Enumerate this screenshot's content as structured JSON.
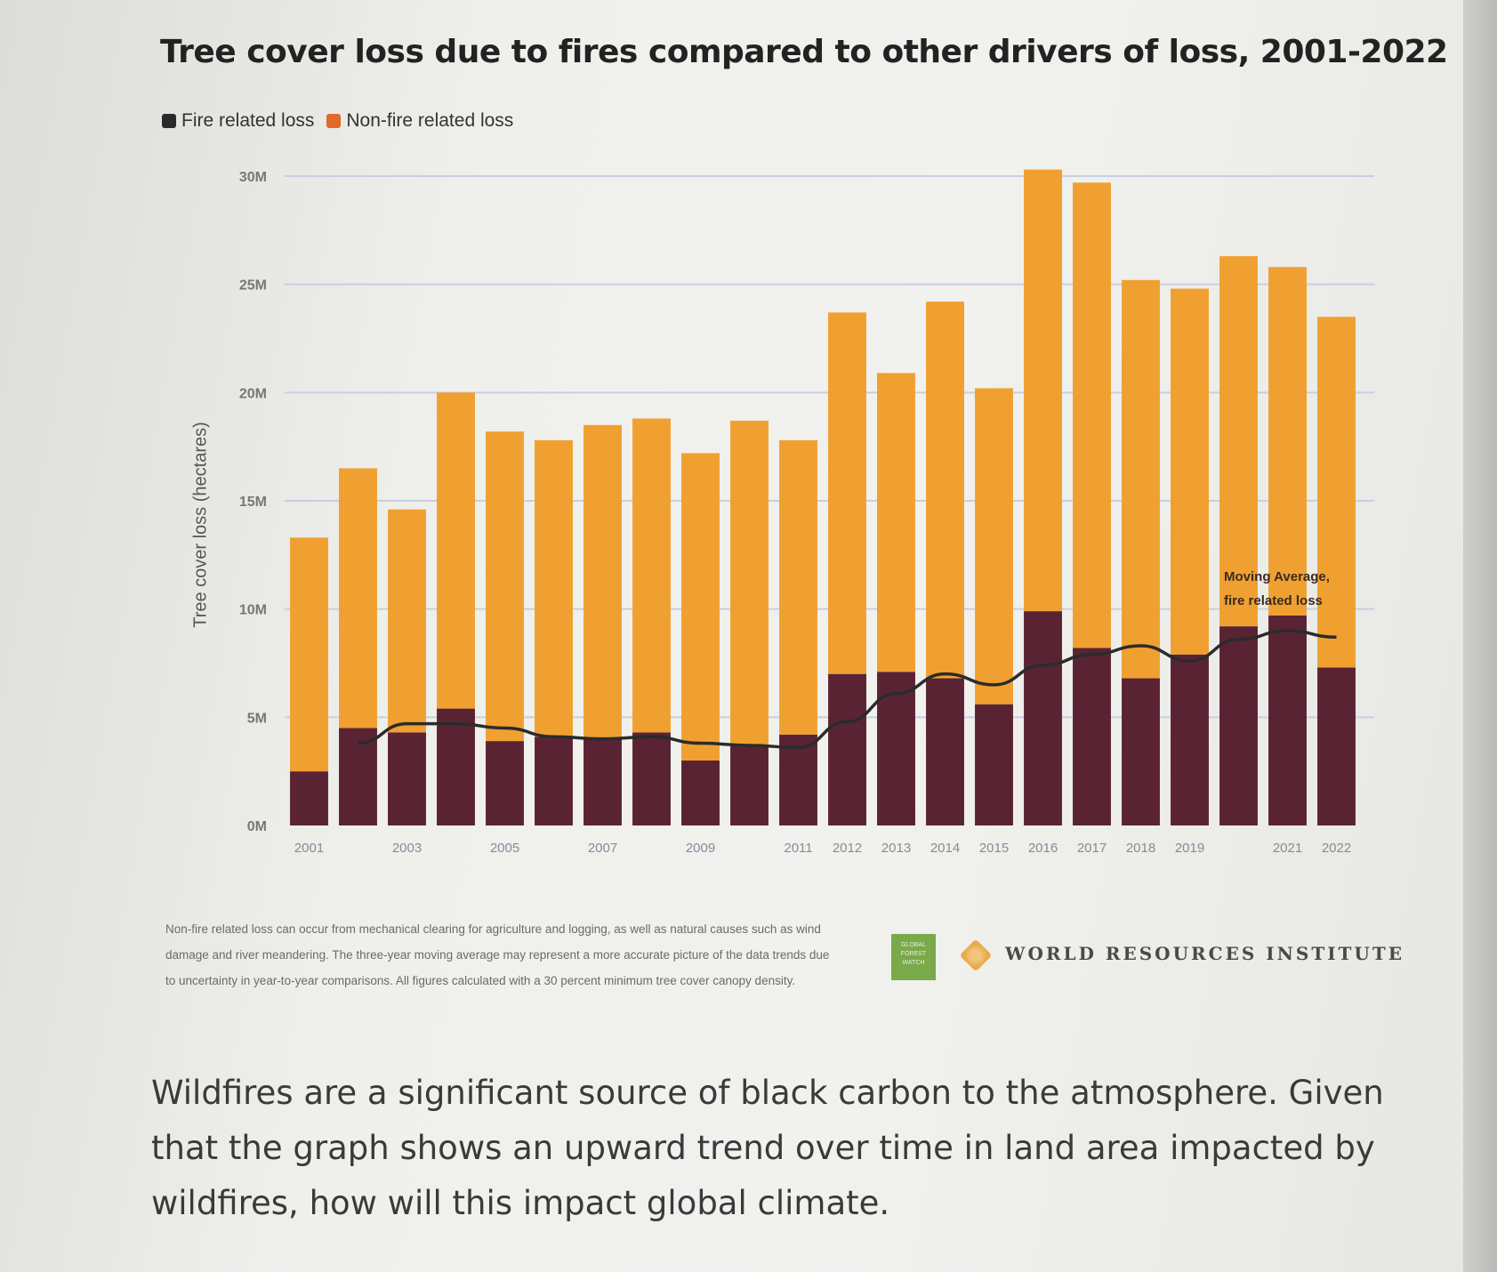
{
  "chart_data": {
    "type": "bar",
    "stacked": true,
    "title": "Tree cover loss due to fires compared to other drivers of loss, 2001-2022",
    "ylabel": "Tree cover loss (hectares)",
    "xlabel": "",
    "ylim": [
      0,
      30000000
    ],
    "yticks": [
      "0M",
      "5M",
      "10M",
      "15M",
      "20M",
      "25M",
      "30M"
    ],
    "grid": true,
    "legend_position": "top-left",
    "categories": [
      "2001",
      "2002",
      "2003",
      "2004",
      "2005",
      "2006",
      "2007",
      "2008",
      "2009",
      "2010",
      "2011",
      "2012",
      "2013",
      "2014",
      "2015",
      "2016",
      "2017",
      "2018",
      "2019",
      "2020",
      "2021",
      "2022"
    ],
    "xtick_labels": [
      "2001",
      "",
      "2003",
      "",
      "2005",
      "",
      "2007",
      "",
      "2009",
      "",
      "2011",
      "2012",
      "2013",
      "2014",
      "2015",
      "2016",
      "2017",
      "2018",
      "2019",
      "",
      "2021",
      "2022"
    ],
    "series": [
      {
        "name": "Fire related loss",
        "color": "#5a2333",
        "values": [
          2500000,
          4500000,
          4300000,
          5400000,
          3900000,
          4100000,
          4000000,
          4300000,
          3000000,
          3700000,
          4200000,
          7000000,
          7100000,
          6800000,
          5600000,
          9900000,
          8200000,
          6800000,
          7900000,
          9200000,
          9700000,
          7300000
        ]
      },
      {
        "name": "Non-fire related loss",
        "color": "#f0a030",
        "values": [
          10800000,
          12000000,
          10300000,
          14600000,
          14300000,
          13700000,
          14500000,
          14500000,
          14200000,
          15000000,
          13600000,
          16700000,
          13800000,
          17400000,
          14600000,
          20400000,
          21500000,
          18400000,
          16900000,
          17100000,
          16100000,
          16200000
        ]
      }
    ],
    "moving_average": {
      "label": "Moving Average, fire related loss",
      "color": "#2b2b2b",
      "values": [
        null,
        3800000,
        4700000,
        4700000,
        4500000,
        4100000,
        4000000,
        4100000,
        3800000,
        3700000,
        3600000,
        4800000,
        6100000,
        7000000,
        6500000,
        7400000,
        7900000,
        8300000,
        7600000,
        8600000,
        9000000,
        8700000
      ]
    }
  },
  "footnote": "Non-fire related loss can occur from mechanical clearing for agriculture and logging, as well as natural causes such as wind damage and river meandering. The three-year moving average may represent a more accurate picture of the data trends due to uncertainty in year-to-year comparisons. All figures calculated with a 30 percent minimum tree cover canopy density.",
  "logos": {
    "gfw": "GLOBAL FOREST WATCH",
    "wri": "WORLD RESOURCES INSTITUTE"
  },
  "question": "Wildfires are a significant source of black carbon to the atmosphere. Given that the graph shows an upward trend over time in land area impacted by wildfires, how will this impact global climate."
}
